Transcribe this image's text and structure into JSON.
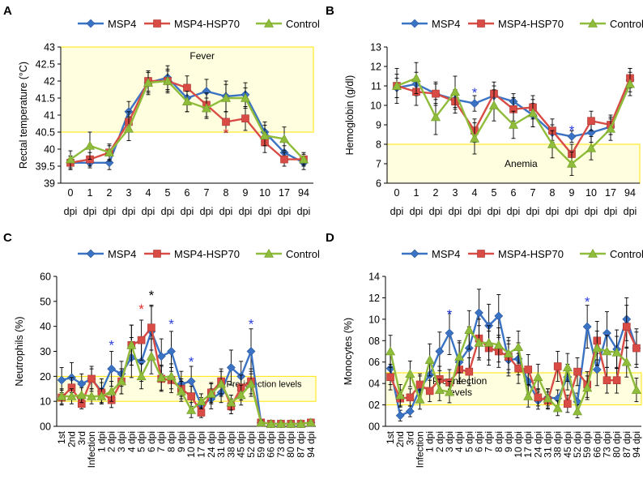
{
  "colors": {
    "msp4": "#3B73C4",
    "hsp70": "#D94C45",
    "control": "#8FBC3A",
    "band_fill": "#FFFFE0",
    "band_stroke": "#FFE500",
    "star_red": "#E0302A",
    "star_blue": "#2B3FDC",
    "star_black": "#000000"
  },
  "series_names": [
    "MSP4",
    "MSP4-HSP70",
    "Control"
  ],
  "chart_data": [
    {
      "panel": "A",
      "type": "line",
      "ylabel": "Rectal temperature (°C)",
      "categories": [
        "0",
        "1",
        "2",
        "3",
        "4",
        "5",
        "6",
        "7",
        "8",
        "9",
        "10",
        "17",
        "94"
      ],
      "unit_label": "dpi",
      "ylim": [
        39,
        43
      ],
      "yticks": [
        "39",
        "39.5",
        "40",
        "40.5",
        "41",
        "41.5",
        "42",
        "42.5",
        "43"
      ],
      "band": {
        "label": "Fever",
        "from": 40.5,
        "to": 43
      },
      "series": [
        {
          "name": "MSP4",
          "values": [
            39.6,
            39.6,
            39.6,
            41.1,
            41.95,
            42.1,
            41.5,
            41.7,
            41.55,
            41.6,
            40.5,
            39.9,
            39.6
          ],
          "err": [
            0.2,
            0.15,
            0.2,
            0.3,
            0.3,
            0.35,
            0.4,
            0.35,
            0.45,
            0.35,
            0.3,
            0.2,
            0.2
          ]
        },
        {
          "name": "MSP4-HSP70",
          "values": [
            39.6,
            39.7,
            39.9,
            40.8,
            42.0,
            42.0,
            41.8,
            41.3,
            40.8,
            40.9,
            40.2,
            39.7,
            39.7
          ],
          "err": [
            0.2,
            0.2,
            0.2,
            0.3,
            0.3,
            0.3,
            0.35,
            0.35,
            0.3,
            0.35,
            0.3,
            0.2,
            0.15
          ]
        },
        {
          "name": "Control",
          "values": [
            39.7,
            40.1,
            39.9,
            40.6,
            41.95,
            42.0,
            41.4,
            41.2,
            41.5,
            41.5,
            40.4,
            40.3,
            39.7
          ],
          "err": [
            0.25,
            0.4,
            0.25,
            0.35,
            0.35,
            0.35,
            0.3,
            0.3,
            0.4,
            0.3,
            0.3,
            0.35,
            0.2
          ]
        }
      ],
      "stars": [
        {
          "index": 8,
          "value": 40.55,
          "label": "*",
          "color": "red"
        }
      ]
    },
    {
      "panel": "B",
      "type": "line",
      "ylabel": "Hemoglobin (g/dl)",
      "categories": [
        "0",
        "1",
        "2",
        "3",
        "4",
        "5",
        "6",
        "7",
        "8",
        "9",
        "10",
        "17",
        "94"
      ],
      "unit_label": "dpi",
      "ylim": [
        6,
        13
      ],
      "yticks": [
        "6",
        "7",
        "8",
        "9",
        "10",
        "11",
        "12",
        "13"
      ],
      "band": {
        "label": "Anemia",
        "from": 6,
        "to": 8
      },
      "series": [
        {
          "name": "MSP4",
          "values": [
            10.9,
            11.1,
            10.6,
            10.3,
            10.1,
            10.5,
            10.2,
            9.5,
            8.6,
            8.4,
            8.6,
            8.9,
            11.3
          ],
          "err": [
            0.5,
            0.6,
            0.5,
            0.5,
            0.4,
            0.5,
            0.4,
            0.6,
            0.4,
            0.3,
            0.5,
            0.4,
            0.6
          ]
        },
        {
          "name": "MSP4-HSP70",
          "values": [
            11.0,
            10.7,
            10.6,
            10.2,
            8.7,
            10.6,
            9.8,
            9.9,
            8.7,
            7.5,
            9.2,
            9.0,
            11.4
          ],
          "err": [
            0.6,
            0.7,
            0.6,
            0.6,
            0.6,
            0.6,
            0.6,
            0.6,
            0.6,
            0.5,
            0.5,
            0.5,
            0.5
          ]
        },
        {
          "name": "Control",
          "values": [
            11.0,
            11.4,
            9.4,
            10.7,
            8.3,
            10.0,
            9.0,
            9.6,
            8.0,
            7.0,
            7.8,
            8.8,
            11.1
          ],
          "err": [
            0.9,
            0.8,
            0.9,
            0.8,
            0.8,
            0.8,
            0.7,
            0.7,
            0.7,
            0.6,
            0.6,
            0.6,
            0.6
          ]
        }
      ],
      "stars": [
        {
          "index": 4,
          "value": 10.8,
          "label": "*",
          "color": "blue"
        },
        {
          "index": 9,
          "value": 8.85,
          "label": "*",
          "color": "blue"
        }
      ]
    },
    {
      "panel": "C",
      "type": "line",
      "ylabel": "Neutrophils (%)",
      "categories": [
        "1st",
        "2nd",
        "3rd",
        "Infection",
        "1 dpi",
        "2 dpi",
        "3 dpi",
        "4 dpi",
        "5 dpi",
        "6 dpi",
        "7 dpi",
        "8 dpi",
        "9 dpi",
        "10 dpi",
        "17 dpi",
        "24 dpi",
        "31 dpi",
        "38 dpi",
        "45 dpi",
        "52 dpi",
        "59 dpi",
        "66 dpi",
        "73 dpi",
        "80 dpi",
        "87 dpi",
        "94 dpi"
      ],
      "ylim": [
        0,
        60
      ],
      "yticks": [
        "00",
        "10",
        "20",
        "30",
        "40",
        "50",
        "60"
      ],
      "band": {
        "label": "Pre-infection levels",
        "from": 10,
        "to": 20
      },
      "series": [
        {
          "name": "MSP4",
          "values": [
            18.5,
            19.5,
            17,
            19,
            14,
            23,
            21,
            27.5,
            26,
            38,
            28,
            30,
            17,
            18,
            8.5,
            11,
            13.5,
            23.5,
            20,
            30,
            1.5,
            1,
            1,
            1,
            1,
            1.5
          ],
          "err": [
            5,
            6,
            4,
            5,
            5,
            7,
            5,
            8,
            8,
            10,
            7,
            8,
            5,
            6,
            3,
            4,
            4,
            7,
            6,
            9,
            1,
            0.5,
            0.5,
            0.5,
            0.5,
            0.5
          ]
        },
        {
          "name": "MSP4-HSP70",
          "values": [
            11.5,
            15.5,
            9,
            19,
            13.5,
            10.5,
            18,
            32.5,
            34.5,
            39.5,
            19,
            18.5,
            15,
            12,
            5.5,
            13.5,
            18,
            8,
            15.5,
            18,
            1.5,
            1,
            1,
            1,
            1,
            1.5
          ],
          "err": [
            3,
            4,
            2,
            4,
            4,
            3,
            5,
            8,
            8,
            9,
            5,
            5,
            4,
            4,
            2,
            4,
            5,
            3,
            5,
            5,
            1,
            0.5,
            0.5,
            0.5,
            0.5,
            0.5
          ]
        },
        {
          "name": "Control",
          "values": [
            12,
            12,
            12.5,
            12,
            12,
            14,
            18,
            32.5,
            20,
            28,
            19.5,
            20,
            14,
            6.5,
            10,
            13,
            17,
            9.5,
            12.5,
            17,
            1.5,
            1,
            1,
            1,
            1,
            1.5
          ],
          "err": [
            3,
            3,
            3,
            3,
            3,
            4,
            5,
            8,
            5,
            7,
            5,
            5,
            4,
            3,
            3,
            4,
            5,
            3,
            4,
            5,
            1,
            0.5,
            0.5,
            0.5,
            0.5,
            0.5
          ]
        }
      ],
      "stars": [
        {
          "index": 5,
          "value": 33.5,
          "label": "*",
          "color": "blue"
        },
        {
          "index": 8,
          "value": 48,
          "label": "*",
          "color": "red"
        },
        {
          "index": 9,
          "value": 53.5,
          "label": "*",
          "color": "black"
        },
        {
          "index": 11,
          "value": 42,
          "label": "*",
          "color": "blue"
        },
        {
          "index": 13,
          "value": 27,
          "label": "*",
          "color": "blue"
        },
        {
          "index": 19,
          "value": 42,
          "label": "*",
          "color": "blue"
        }
      ]
    },
    {
      "panel": "D",
      "type": "line",
      "ylabel": "Monocytes (%)",
      "categories": [
        "1st",
        "2nd",
        "3rd",
        "Infection",
        "1 dpi",
        "2 dpi",
        "3 dpi",
        "4 dpi",
        "5 dpi",
        "6 dpi",
        "7 dpi",
        "8 dpi",
        "9 dpi",
        "10 dpi",
        "17 dpi",
        "24 dpi",
        "31 dpi",
        "38 dpi",
        "45 dpi",
        "52 dpi",
        "59 dpi",
        "66 dpi",
        "73 dpi",
        "80 dpi",
        "87 dpi",
        "94 dpi"
      ],
      "ylim": [
        0,
        14
      ],
      "yticks": [
        "00",
        "02",
        "04",
        "06",
        "08",
        "10",
        "12",
        "14"
      ],
      "band": {
        "label": "Pre-infection\nlevels",
        "from": 2,
        "to": 5
      },
      "series": [
        {
          "name": "MSP4",
          "values": [
            5.4,
            1.0,
            1.4,
            3.5,
            4.8,
            7.0,
            8.7,
            6.0,
            7.3,
            10.6,
            9.4,
            10.3,
            6.2,
            6.3,
            4.2,
            2.4,
            2.7,
            2.6,
            4.6,
            2.3,
            9.3,
            5.3,
            8.7,
            7.2,
            10.0,
            7.3
          ],
          "err": [
            1.5,
            0.5,
            0.5,
            1.2,
            1.5,
            1.8,
            2,
            1.8,
            2,
            2.2,
            2,
            2,
            1.5,
            1.5,
            1.2,
            0.8,
            0.8,
            0.8,
            1.2,
            0.8,
            2,
            1.5,
            2,
            1.8,
            2,
            1.5
          ]
        },
        {
          "name": "MSP4-HSP70",
          "values": [
            4.6,
            2.6,
            2.7,
            3.9,
            3.3,
            4.4,
            4.1,
            5.3,
            5.1,
            8.2,
            7.3,
            7.0,
            6.5,
            5.4,
            5.3,
            2.7,
            2.4,
            5.6,
            2.1,
            5.1,
            3.9,
            8.0,
            4.3,
            4.3,
            9.3,
            7.3
          ],
          "err": [
            1.2,
            0.8,
            0.8,
            1,
            1,
            1.2,
            1.2,
            1.3,
            1.3,
            1.8,
            1.6,
            1.5,
            1.5,
            1.4,
            1.4,
            0.8,
            0.8,
            1.4,
            0.8,
            1.3,
            1.2,
            1.8,
            1.2,
            1.2,
            2,
            1.8
          ]
        },
        {
          "name": "Control",
          "values": [
            7.0,
            2.9,
            4.9,
            2.5,
            6.2,
            3.4,
            3.2,
            6.5,
            9.0,
            7.8,
            7.8,
            7.6,
            6.8,
            7.4,
            2.8,
            4.6,
            2.6,
            1.7,
            5.5,
            1.4,
            3.6,
            7.3,
            7.0,
            6.9,
            6.0,
            3.4
          ],
          "err": [
            1.5,
            1,
            1.2,
            0.9,
            1.5,
            1,
            1,
            1.5,
            1.8,
            1.6,
            1.6,
            1.6,
            1.5,
            1.5,
            1,
            1.2,
            0.9,
            0.7,
            1.3,
            0.6,
            1.1,
            1.6,
            1.5,
            1.5,
            1.4,
            1.1
          ]
        }
      ],
      "stars": [
        {
          "index": 6,
          "value": 10.7,
          "label": "*",
          "color": "blue"
        },
        {
          "index": 20,
          "value": 11.9,
          "label": "*",
          "color": "blue"
        }
      ]
    }
  ]
}
